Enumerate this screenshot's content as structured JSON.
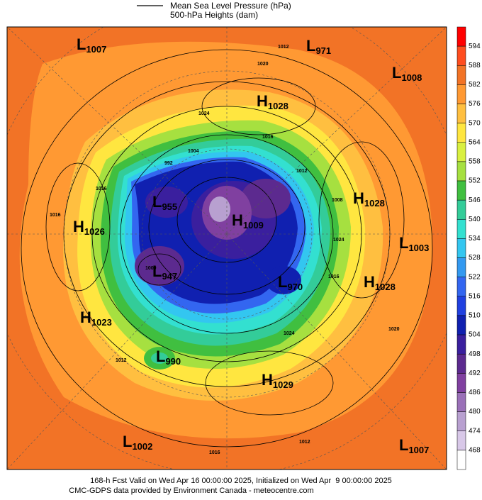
{
  "legend": {
    "items": [
      "Mean Sea Level Pressure (hPa)",
      "500-hPa Heights (dam)"
    ]
  },
  "colorbar": {
    "ticks": [
      594,
      588,
      582,
      576,
      570,
      564,
      558,
      552,
      546,
      540,
      534,
      528,
      522,
      516,
      510,
      504,
      498,
      492,
      486,
      480,
      474,
      468
    ],
    "colors": [
      "#ff0000",
      "#ff4d1f",
      "#f27326",
      "#ff9933",
      "#ffbf40",
      "#ffe640",
      "#d9f040",
      "#a6e040",
      "#40bf40",
      "#33cc99",
      "#33e0d0",
      "#33c6f0",
      "#3399f0",
      "#3366f0",
      "#2040e0",
      "#1020b0",
      "#3a1f9e",
      "#5c2a8f",
      "#8040a0",
      "#9a70b8",
      "#b8a0d0",
      "#d8c8e8",
      "#ffffff"
    ]
  },
  "centers": [
    {
      "type": "L",
      "value": "1007"
    },
    {
      "type": "L",
      "value": "971"
    },
    {
      "type": "L",
      "value": "1008"
    },
    {
      "type": "H",
      "value": "1028"
    },
    {
      "type": "H",
      "value": "1028"
    },
    {
      "type": "L",
      "value": "1003"
    },
    {
      "type": "H",
      "value": "1028"
    },
    {
      "type": "H",
      "value": "1026"
    },
    {
      "type": "L",
      "value": "955"
    },
    {
      "type": "H",
      "value": "1009"
    },
    {
      "type": "L",
      "value": "947"
    },
    {
      "type": "L",
      "value": "970"
    },
    {
      "type": "H",
      "value": "1023"
    },
    {
      "type": "L",
      "value": "990"
    },
    {
      "type": "H",
      "value": "1029"
    },
    {
      "type": "L",
      "value": "1002"
    },
    {
      "type": "L",
      "value": "1007"
    }
  ],
  "contour_labels": [
    "1012",
    "1020",
    "1024",
    "1016",
    "1008",
    "1004",
    "992",
    "1000",
    "1012",
    "1016",
    "1024",
    "1016",
    "1020",
    "1012",
    "1024",
    "1016",
    "1016",
    "1012"
  ],
  "footer": [
    "168-h Fcst Valid on Wed Apr 16 00:00:00 2025, Initialized on Wed Apr  9 00:00:00 2025",
    "CMC-GDPS data provided by Environment Canada - meteocentre.com"
  ]
}
